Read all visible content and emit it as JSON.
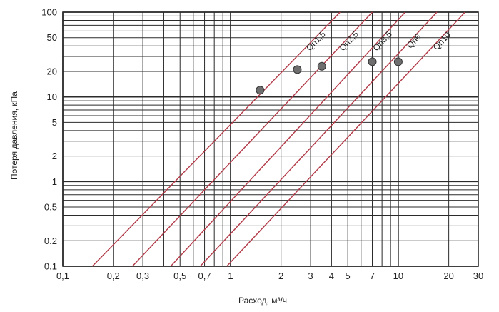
{
  "chart_data": {
    "type": "line",
    "title": "",
    "xlabel": "Расход, м³/ч",
    "ylabel": "Потеря давления, кПа",
    "x_scale": "log",
    "y_scale": "log",
    "xlim": [
      0.1,
      30
    ],
    "ylim": [
      0.1,
      100
    ],
    "grid": true,
    "x_ticks": [
      {
        "value": 0.1,
        "label": "0,1"
      },
      {
        "value": 0.2,
        "label": "0,2"
      },
      {
        "value": 0.3,
        "label": "0,3"
      },
      {
        "value": 0.5,
        "label": "0,5"
      },
      {
        "value": 0.7,
        "label": "0,7"
      },
      {
        "value": 1,
        "label": "1"
      },
      {
        "value": 2,
        "label": "2"
      },
      {
        "value": 3,
        "label": "3"
      },
      {
        "value": 4,
        "label": "4"
      },
      {
        "value": 5,
        "label": "5"
      },
      {
        "value": 7,
        "label": "7"
      },
      {
        "value": 10,
        "label": "10"
      },
      {
        "value": 20,
        "label": "20"
      },
      {
        "value": 30,
        "label": "30"
      }
    ],
    "y_ticks": [
      {
        "value": 0.1,
        "label": "0.1"
      },
      {
        "value": 0.2,
        "label": "0.2"
      },
      {
        "value": 0.5,
        "label": "0.5"
      },
      {
        "value": 1,
        "label": "1"
      },
      {
        "value": 2,
        "label": "2"
      },
      {
        "value": 5,
        "label": "5"
      },
      {
        "value": 10,
        "label": "10"
      },
      {
        "value": 20,
        "label": "20"
      },
      {
        "value": 50,
        "label": "50"
      },
      {
        "value": 100,
        "label": "100"
      }
    ],
    "series": [
      {
        "name": "Qn1,5",
        "x": [
          0.15,
          4.5
        ],
        "y": [
          0.1,
          100
        ],
        "point": {
          "x": 1.5,
          "y": 12
        }
      },
      {
        "name": "Qn2,5",
        "x": [
          0.26,
          7.0
        ],
        "y": [
          0.1,
          100
        ],
        "point": {
          "x": 2.5,
          "y": 21
        }
      },
      {
        "name": "Qn3,5",
        "x": [
          0.44,
          11.0
        ],
        "y": [
          0.1,
          100
        ],
        "point": {
          "x": 3.5,
          "y": 23
        }
      },
      {
        "name": "Qn6",
        "x": [
          0.66,
          17.0
        ],
        "y": [
          0.1,
          100
        ],
        "point": {
          "x": 7,
          "y": 26
        }
      },
      {
        "name": "Qn10",
        "x": [
          0.95,
          25.0
        ],
        "y": [
          0.1,
          100
        ],
        "point": {
          "x": 10,
          "y": 26
        }
      }
    ],
    "colors": {
      "line": "#b23a48",
      "grid": "#2b2b2b",
      "point": "#6e6e6e"
    }
  }
}
